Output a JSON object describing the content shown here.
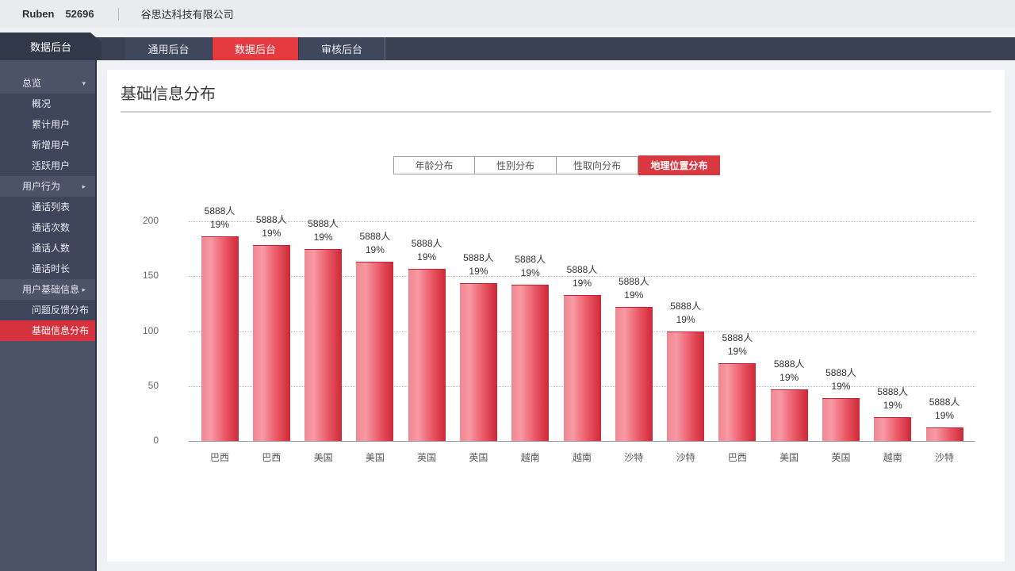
{
  "topbar": {
    "username": "Ruben",
    "user_id": "52696",
    "company": "谷思达科技有限公司"
  },
  "navbar": {
    "sidebar_header": "数据后台",
    "tabs": [
      {
        "label": "通用后台",
        "active": false
      },
      {
        "label": "数据后台",
        "active": true
      },
      {
        "label": "审核后台",
        "active": false
      }
    ]
  },
  "sidebar": {
    "items": [
      {
        "label": "总览",
        "type": "group",
        "chevron": "down",
        "active": false
      },
      {
        "label": "概况",
        "type": "item",
        "chevron": "",
        "active": false
      },
      {
        "label": "累计用户",
        "type": "item",
        "chevron": "",
        "active": false
      },
      {
        "label": "新增用户",
        "type": "item",
        "chevron": "",
        "active": false
      },
      {
        "label": "活跃用户",
        "type": "item",
        "chevron": "",
        "active": false
      },
      {
        "label": "用户行为",
        "type": "group",
        "chevron": "right",
        "active": false
      },
      {
        "label": "通话列表",
        "type": "item",
        "chevron": "",
        "active": false
      },
      {
        "label": "通话次数",
        "type": "item",
        "chevron": "",
        "active": false
      },
      {
        "label": "通话人数",
        "type": "item",
        "chevron": "",
        "active": false
      },
      {
        "label": "通话时长",
        "type": "item",
        "chevron": "",
        "active": false
      },
      {
        "label": "用户基础信息",
        "type": "group",
        "chevron": "right",
        "active": false
      },
      {
        "label": "问题反馈分布",
        "type": "item",
        "chevron": "",
        "active": false
      },
      {
        "label": "基础信息分布",
        "type": "item",
        "chevron": "",
        "active": true
      }
    ]
  },
  "main": {
    "title": "基础信息分布",
    "chart_tabs": [
      {
        "label": "年龄分布",
        "active": false
      },
      {
        "label": "性别分布",
        "active": false
      },
      {
        "label": "性取向分布",
        "active": false
      },
      {
        "label": "地理位置分布",
        "active": true
      }
    ]
  },
  "chart_data": {
    "type": "bar",
    "title": "地理位置分布",
    "categories": [
      "巴西",
      "巴西",
      "美国",
      "美国",
      "英国",
      "英国",
      "越南",
      "越南",
      "沙特",
      "沙特",
      "巴西",
      "美国",
      "英国",
      "越南",
      "沙特"
    ],
    "values": [
      186,
      178,
      175,
      163,
      157,
      144,
      142,
      133,
      122,
      100,
      71,
      47,
      39,
      22,
      12
    ],
    "bar_count_labels": [
      "5888人",
      "5888人",
      "5888人",
      "5888人",
      "5888人",
      "5888人",
      "5888人",
      "5888人",
      "5888人",
      "5888人",
      "5888人",
      "5888人",
      "5888人",
      "5888人",
      "5888人"
    ],
    "bar_percent_labels": [
      "19%",
      "19%",
      "19%",
      "19%",
      "19%",
      "19%",
      "19%",
      "19%",
      "19%",
      "19%",
      "19%",
      "19%",
      "19%",
      "19%",
      "19%"
    ],
    "xlabel": "",
    "ylabel": "",
    "ylim": [
      0,
      200
    ],
    "yticks": [
      0,
      50,
      100,
      150,
      200
    ],
    "grid": "horizontal-dotted",
    "legend": null
  },
  "colors": {
    "accent_red": "#e43a40",
    "sidebar_active_red": "#d6323e",
    "chart_tab_active_red": "#d83840",
    "bar_gradient": [
      "#ef8791",
      "#f89aa4",
      "#e95563",
      "#cd2837"
    ],
    "navbar_bg": "#3a4153",
    "sidebar_bg": "#4c5368",
    "sidebar_item_bg": "#3e455a"
  }
}
